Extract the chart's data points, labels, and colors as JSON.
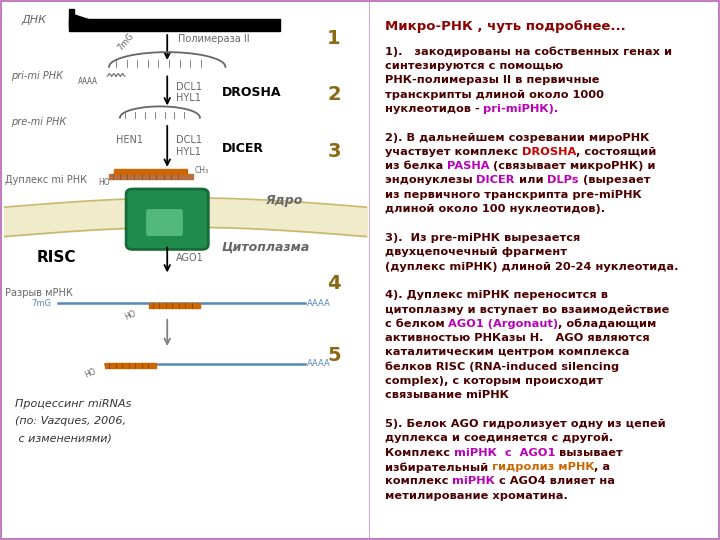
{
  "title": "Микро-РНК , чуть подробнее...",
  "title_color": "#8B0000",
  "background_color": "#FFFFFF",
  "border_color": "#C080C0",
  "dark_red": "#4B0000",
  "magenta": "#BB00BB",
  "red": "#CC0000",
  "orange": "#CC6600",
  "number_color": "#8B6914",
  "gray_text": "#555555",
  "right_panel_lines": [
    {
      "segments": [
        {
          "t": "1).   закодированы на собственных генах и",
          "c": "dark_red"
        }
      ]
    },
    {
      "segments": [
        {
          "t": "синтезируются с помощью",
          "c": "dark_red"
        }
      ]
    },
    {
      "segments": [
        {
          "t": "РНК-полимеразы II в первичные",
          "c": "dark_red"
        }
      ]
    },
    {
      "segments": [
        {
          "t": "транскрипты длиной около 1000",
          "c": "dark_red"
        }
      ]
    },
    {
      "segments": [
        {
          "t": "нуклеотидов - ",
          "c": "dark_red"
        },
        {
          "t": "pri-miРНК).",
          "c": "magenta"
        }
      ]
    },
    {
      "segments": [
        {
          "t": "",
          "c": "dark_red"
        }
      ]
    },
    {
      "segments": [
        {
          "t": "2). В дальнейшем созревании мироРНК",
          "c": "dark_red"
        }
      ]
    },
    {
      "segments": [
        {
          "t": "участвует комплекс ",
          "c": "dark_red"
        },
        {
          "t": "DROSHA",
          "c": "red"
        },
        {
          "t": ", состоящий",
          "c": "dark_red"
        }
      ]
    },
    {
      "segments": [
        {
          "t": "из белка ",
          "c": "dark_red"
        },
        {
          "t": "PASHA",
          "c": "magenta"
        },
        {
          "t": " (связывает микроРНК) и",
          "c": "dark_red"
        }
      ]
    },
    {
      "segments": [
        {
          "t": "эндонуклезы ",
          "c": "dark_red"
        },
        {
          "t": "DICER",
          "c": "magenta"
        },
        {
          "t": " или ",
          "c": "dark_red"
        },
        {
          "t": "DLPs",
          "c": "magenta"
        },
        {
          "t": " (вырезает",
          "c": "dark_red"
        }
      ]
    },
    {
      "segments": [
        {
          "t": "из первичного транскрипта pre-miРНК",
          "c": "dark_red"
        }
      ]
    },
    {
      "segments": [
        {
          "t": "длиной около 100 нуклеотидов).",
          "c": "dark_red"
        }
      ]
    },
    {
      "segments": [
        {
          "t": "",
          "c": "dark_red"
        }
      ]
    },
    {
      "segments": [
        {
          "t": "3).  Из pre-miРНК вырезается",
          "c": "dark_red"
        }
      ]
    },
    {
      "segments": [
        {
          "t": "двухцепочечный фрагмент",
          "c": "dark_red"
        }
      ]
    },
    {
      "segments": [
        {
          "t": "(дуплекс miРНК) длиной 20-24 нуклеотида.",
          "c": "dark_red"
        }
      ]
    },
    {
      "segments": [
        {
          "t": "",
          "c": "dark_red"
        }
      ]
    },
    {
      "segments": [
        {
          "t": "4). Дуплекс miРНК переносится в",
          "c": "dark_red"
        }
      ]
    },
    {
      "segments": [
        {
          "t": "цитоплазму и вступает во взаимодействие",
          "c": "dark_red"
        }
      ]
    },
    {
      "segments": [
        {
          "t": "с белком ",
          "c": "dark_red"
        },
        {
          "t": "AGO1 (Argonaut)",
          "c": "magenta"
        },
        {
          "t": ", обладающим",
          "c": "dark_red"
        }
      ]
    },
    {
      "segments": [
        {
          "t": "активностью РНКазы Н.   AGO являются",
          "c": "dark_red"
        }
      ]
    },
    {
      "segments": [
        {
          "t": "каталитическим центром комплекса",
          "c": "dark_red"
        }
      ]
    },
    {
      "segments": [
        {
          "t": "белков RISC (RNA-induced silencing",
          "c": "dark_red"
        }
      ]
    },
    {
      "segments": [
        {
          "t": "complex), с которым происходит",
          "c": "dark_red"
        }
      ]
    },
    {
      "segments": [
        {
          "t": "связывание miРНК",
          "c": "dark_red"
        }
      ]
    },
    {
      "segments": [
        {
          "t": "",
          "c": "dark_red"
        }
      ]
    },
    {
      "segments": [
        {
          "t": "5). Белок AGO гидролизует одну из цепей",
          "c": "dark_red"
        }
      ]
    },
    {
      "segments": [
        {
          "t": "дуплекса и соединяется с другой.",
          "c": "dark_red"
        }
      ]
    },
    {
      "segments": [
        {
          "t": "Комплекс ",
          "c": "dark_red"
        },
        {
          "t": "miРНК  с  AGO1",
          "c": "magenta"
        },
        {
          "t": " вызывает",
          "c": "dark_red"
        }
      ]
    },
    {
      "segments": [
        {
          "t": "избирательный ",
          "c": "dark_red"
        },
        {
          "t": "гидролиз мРНК",
          "c": "orange"
        },
        {
          "t": ", а",
          "c": "dark_red"
        }
      ]
    },
    {
      "segments": [
        {
          "t": "комплекс ",
          "c": "dark_red"
        },
        {
          "t": "miРНК",
          "c": "magenta"
        },
        {
          "t": " с AGO4 влияет на",
          "c": "dark_red"
        }
      ]
    },
    {
      "segments": [
        {
          "t": "метилирование хроматина.",
          "c": "dark_red"
        }
      ]
    }
  ]
}
